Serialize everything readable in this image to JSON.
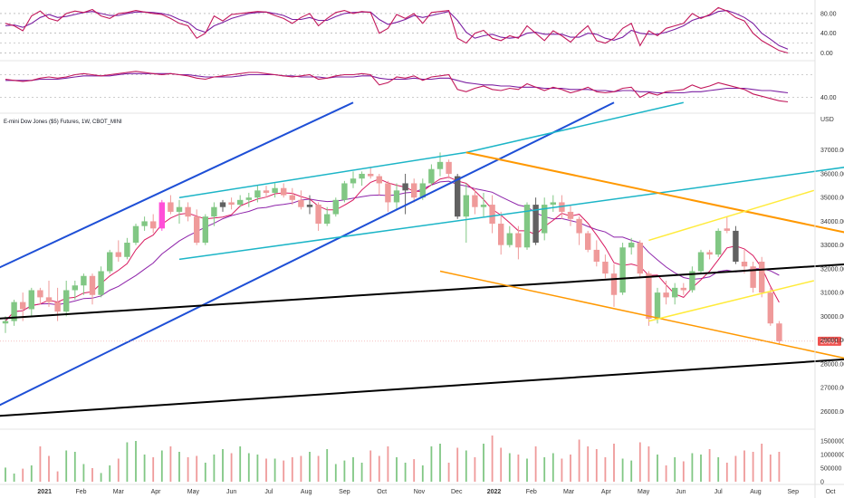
{
  "chart_data": {
    "type": "candlestick",
    "title": "E-mini Dow Jones ($5) Futures, 1W, CBOT_MINI",
    "currency_label": "USD",
    "last_price_label": "28951",
    "x_tick_labels": [
      "2021",
      "Feb",
      "Mar",
      "Apr",
      "May",
      "Jun",
      "Jul",
      "Aug",
      "Sep",
      "Oct",
      "Nov",
      "Dec",
      "2022",
      "Feb",
      "Mar",
      "Apr",
      "May",
      "Jun",
      "Jul",
      "Aug",
      "Sep",
      "Oct"
    ],
    "price_axis": {
      "ylim": [
        25400,
        37600
      ],
      "ticks": [
        26000,
        27000,
        28000,
        29000,
        30000,
        31000,
        32000,
        33000,
        34000,
        35000,
        36000,
        37000
      ]
    },
    "volume_axis": {
      "ylim": [
        0,
        1800000
      ],
      "ticks": [
        0,
        500000,
        1000000,
        1500000
      ]
    },
    "oscillator1": {
      "ylim": [
        -10,
        100
      ],
      "ticks": [
        0,
        40,
        80
      ],
      "levels": [
        0,
        20,
        40,
        60,
        80
      ],
      "colors": [
        "#c2185b",
        "#7b1fa2"
      ]
    },
    "oscillator2": {
      "ylim": [
        30,
        70
      ],
      "ticks": [
        40
      ],
      "levels": [
        40,
        60
      ],
      "colors": [
        "#c2185b",
        "#7b1fa2"
      ]
    },
    "colors": {
      "up": "#81c784",
      "down": "#ef9a9a",
      "highlight_up": "#ff4fd8",
      "highlight_down": "#616161",
      "ma_fast": "#d81b60",
      "ma_slow": "#8e24aa",
      "blue": "#1e4fd6",
      "cyan": "#1cb5c7",
      "black": "#000000",
      "orange": "#ff9800",
      "yellow": "#ffeb3b"
    },
    "candles": [
      [
        29700,
        30000,
        29300,
        29800
      ],
      [
        29800,
        30700,
        29600,
        30600
      ],
      [
        30600,
        31000,
        29800,
        30300
      ],
      [
        30300,
        31200,
        30000,
        31100
      ],
      [
        31100,
        31200,
        30500,
        30800
      ],
      [
        30800,
        31500,
        30400,
        30600
      ],
      [
        30600,
        31200,
        29800,
        30200
      ],
      [
        30200,
        31500,
        30000,
        31100
      ],
      [
        31100,
        31500,
        30700,
        31300
      ],
      [
        31300,
        31800,
        30900,
        31700
      ],
      [
        31700,
        31800,
        30500,
        30900
      ],
      [
        30900,
        32100,
        30800,
        31900
      ],
      [
        31900,
        32800,
        31800,
        32700
      ],
      [
        32700,
        33200,
        32300,
        32500
      ],
      [
        32500,
        33300,
        32400,
        33100
      ],
      [
        33100,
        33900,
        33000,
        33800
      ],
      [
        33800,
        34200,
        33600,
        34000
      ],
      [
        34000,
        34300,
        33500,
        33700
      ],
      [
        33700,
        34900,
        33600,
        34800
      ],
      [
        34800,
        35100,
        34300,
        34400
      ],
      [
        34400,
        34900,
        33900,
        34600
      ],
      [
        34600,
        34800,
        34000,
        34200
      ],
      [
        34200,
        34500,
        33000,
        33100
      ],
      [
        33100,
        34300,
        33000,
        34200
      ],
      [
        34200,
        34800,
        33800,
        34600
      ],
      [
        34600,
        34900,
        34400,
        34800
      ],
      [
        34800,
        35000,
        34500,
        34700
      ],
      [
        34700,
        35100,
        34600,
        34900
      ],
      [
        34900,
        35200,
        34600,
        35000
      ],
      [
        35000,
        35500,
        34800,
        35300
      ],
      [
        35300,
        35500,
        35000,
        35200
      ],
      [
        35200,
        35600,
        35000,
        35400
      ],
      [
        35400,
        35600,
        35000,
        35100
      ],
      [
        35100,
        35400,
        34700,
        34900
      ],
      [
        34900,
        35300,
        34500,
        34600
      ],
      [
        34600,
        35100,
        34300,
        34700
      ],
      [
        34700,
        34800,
        33600,
        33900
      ],
      [
        33900,
        34600,
        33800,
        34300
      ],
      [
        34300,
        35000,
        34200,
        34900
      ],
      [
        34900,
        35700,
        34800,
        35600
      ],
      [
        35600,
        36100,
        35400,
        35800
      ],
      [
        35800,
        36100,
        35500,
        36000
      ],
      [
        36000,
        36300,
        35800,
        35900
      ],
      [
        35900,
        36000,
        35100,
        35600
      ],
      [
        35600,
        35700,
        34400,
        34800
      ],
      [
        34800,
        35600,
        34500,
        35300
      ],
      [
        35300,
        36000,
        34300,
        35600
      ],
      [
        35600,
        35800,
        34800,
        35000
      ],
      [
        35000,
        35800,
        34900,
        35600
      ],
      [
        35600,
        36400,
        35500,
        36200
      ],
      [
        36200,
        36900,
        35900,
        36500
      ],
      [
        36500,
        36600,
        35800,
        36000
      ],
      [
        35900,
        36000,
        34100,
        34200
      ],
      [
        34200,
        35600,
        33100,
        35100
      ],
      [
        35100,
        35400,
        34300,
        34600
      ],
      [
        34600,
        35200,
        34200,
        34700
      ],
      [
        34700,
        35100,
        33500,
        33900
      ],
      [
        33900,
        34400,
        32600,
        33000
      ],
      [
        33000,
        33800,
        32900,
        33500
      ],
      [
        33500,
        33800,
        32400,
        32900
      ],
      [
        32900,
        34800,
        32800,
        34700
      ],
      [
        34700,
        35000,
        33000,
        33100
      ],
      [
        33500,
        35000,
        33200,
        34700
      ],
      [
        34700,
        35100,
        34400,
        34800
      ],
      [
        34800,
        35100,
        34100,
        34400
      ],
      [
        34400,
        34700,
        33800,
        34100
      ],
      [
        34100,
        34200,
        33000,
        33500
      ],
      [
        33500,
        33600,
        32700,
        32800
      ],
      [
        32800,
        33200,
        32100,
        32300
      ],
      [
        32300,
        32600,
        31600,
        31800
      ],
      [
        31800,
        32200,
        30400,
        30900
      ],
      [
        31000,
        33100,
        30900,
        32900
      ],
      [
        32900,
        33300,
        32600,
        33100
      ],
      [
        33100,
        33200,
        31600,
        31800
      ],
      [
        31800,
        31900,
        29600,
        29900
      ],
      [
        29900,
        31200,
        29700,
        31000
      ],
      [
        31000,
        31500,
        30500,
        30800
      ],
      [
        30800,
        31400,
        30500,
        31200
      ],
      [
        31200,
        31400,
        30900,
        31100
      ],
      [
        31100,
        32100,
        31000,
        31900
      ],
      [
        31900,
        32800,
        31800,
        32700
      ],
      [
        32700,
        32800,
        32400,
        32600
      ],
      [
        32600,
        33700,
        32500,
        33600
      ],
      [
        33700,
        34200,
        33500,
        33600
      ],
      [
        33600,
        33800,
        32200,
        32300
      ],
      [
        32300,
        32800,
        31800,
        32100
      ],
      [
        32100,
        32300,
        31000,
        31200
      ],
      [
        32300,
        32500,
        30800,
        31000
      ],
      [
        31000,
        31200,
        29600,
        29700
      ],
      [
        29700,
        29800,
        28800,
        28951
      ]
    ],
    "highlight_up_index": 18,
    "highlight_down_indices": [
      25,
      35,
      46,
      52,
      61,
      84
    ],
    "volume": [
      520000,
      300000,
      480000,
      600000,
      1300000,
      950000,
      380000,
      1150000,
      1100000,
      650000,
      500000,
      320000,
      600000,
      850000,
      1450000,
      1500000,
      1000000,
      900000,
      1150000,
      1300000,
      1100000,
      900000,
      950000,
      700000,
      1000000,
      1200000,
      1050000,
      1300000,
      1050000,
      1000000,
      850000,
      850000,
      780000,
      900000,
      950000,
      1100000,
      950000,
      1200000,
      650000,
      780000,
      900000,
      700000,
      1150000,
      950000,
      1300000,
      900000,
      700000,
      830000,
      600000,
      1300000,
      1400000,
      700000,
      1250000,
      1150000,
      900000,
      1400000,
      1700000,
      1250000,
      1050000,
      1000000,
      850000,
      1300000,
      900000,
      1050000,
      850000,
      1000000,
      1550000,
      1300000,
      1200000,
      900000,
      1400000,
      850000,
      780000,
      1450000,
      1300000,
      1000000,
      600000,
      900000,
      750000,
      1050000,
      1000000,
      1200000,
      900000,
      700000,
      950000,
      1150000,
      1100000,
      1400000,
      1000000,
      1100000
    ],
    "osc1_fast": [
      60,
      55,
      45,
      75,
      85,
      70,
      65,
      80,
      85,
      82,
      88,
      75,
      70,
      80,
      82,
      86,
      83,
      80,
      78,
      70,
      60,
      55,
      30,
      40,
      75,
      65,
      78,
      80,
      82,
      84,
      83,
      76,
      70,
      60,
      72,
      80,
      55,
      70,
      82,
      86,
      80,
      84,
      82,
      40,
      50,
      78,
      70,
      80,
      60,
      82,
      84,
      86,
      30,
      20,
      40,
      46,
      30,
      25,
      35,
      30,
      55,
      40,
      25,
      45,
      35,
      22,
      40,
      55,
      25,
      20,
      30,
      50,
      60,
      15,
      45,
      35,
      50,
      55,
      60,
      80,
      70,
      78,
      92,
      85,
      72,
      65,
      40,
      25,
      15,
      5,
      0
    ],
    "osc1_slow": [
      55,
      57,
      52,
      60,
      72,
      78,
      72,
      74,
      78,
      82,
      84,
      80,
      76,
      76,
      80,
      83,
      83,
      82,
      80,
      76,
      68,
      62,
      48,
      42,
      55,
      62,
      70,
      75,
      80,
      82,
      83,
      80,
      76,
      68,
      68,
      72,
      66,
      66,
      74,
      80,
      82,
      83,
      83,
      68,
      58,
      62,
      68,
      76,
      72,
      76,
      80,
      84,
      66,
      42,
      30,
      35,
      38,
      32,
      30,
      32,
      40,
      42,
      38,
      38,
      38,
      32,
      32,
      40,
      38,
      30,
      26,
      32,
      46,
      40,
      38,
      38,
      42,
      48,
      55,
      66,
      72,
      76,
      84,
      86,
      80,
      72,
      60,
      40,
      28,
      15,
      8
    ],
    "osc2_fast": [
      56,
      55,
      54,
      55,
      57,
      58,
      57,
      58,
      60,
      61,
      60,
      59,
      60,
      61,
      62,
      63,
      62,
      61,
      60,
      61,
      60,
      59,
      57,
      56,
      58,
      59,
      60,
      61,
      62,
      62,
      61,
      60,
      59,
      58,
      59,
      60,
      56,
      57,
      59,
      60,
      60,
      61,
      60,
      51,
      53,
      58,
      57,
      59,
      55,
      58,
      59,
      60,
      47,
      45,
      48,
      50,
      47,
      46,
      48,
      47,
      52,
      49,
      46,
      49,
      47,
      44,
      46,
      49,
      45,
      44,
      45,
      48,
      49,
      40,
      44,
      42,
      45,
      46,
      47,
      51,
      48,
      50,
      53,
      51,
      49,
      47,
      43,
      41,
      39,
      37,
      36
    ],
    "osc2_slow": [
      55,
      55,
      55,
      55,
      56,
      56,
      56,
      57,
      58,
      59,
      59,
      59,
      59,
      60,
      61,
      61,
      61,
      61,
      61,
      61,
      60,
      60,
      59,
      58,
      58,
      58,
      58,
      59,
      60,
      60,
      60,
      60,
      59,
      59,
      58,
      58,
      58,
      57,
      58,
      58,
      58,
      59,
      59,
      57,
      56,
      56,
      56,
      57,
      56,
      56,
      57,
      57,
      55,
      53,
      52,
      51,
      51,
      50,
      50,
      49,
      49,
      49,
      48,
      48,
      48,
      47,
      47,
      47,
      46,
      46,
      45,
      46,
      46,
      45,
      45,
      44,
      44,
      44,
      44,
      45,
      45,
      46,
      47,
      48,
      48,
      48,
      47,
      46,
      46,
      45,
      44
    ]
  }
}
